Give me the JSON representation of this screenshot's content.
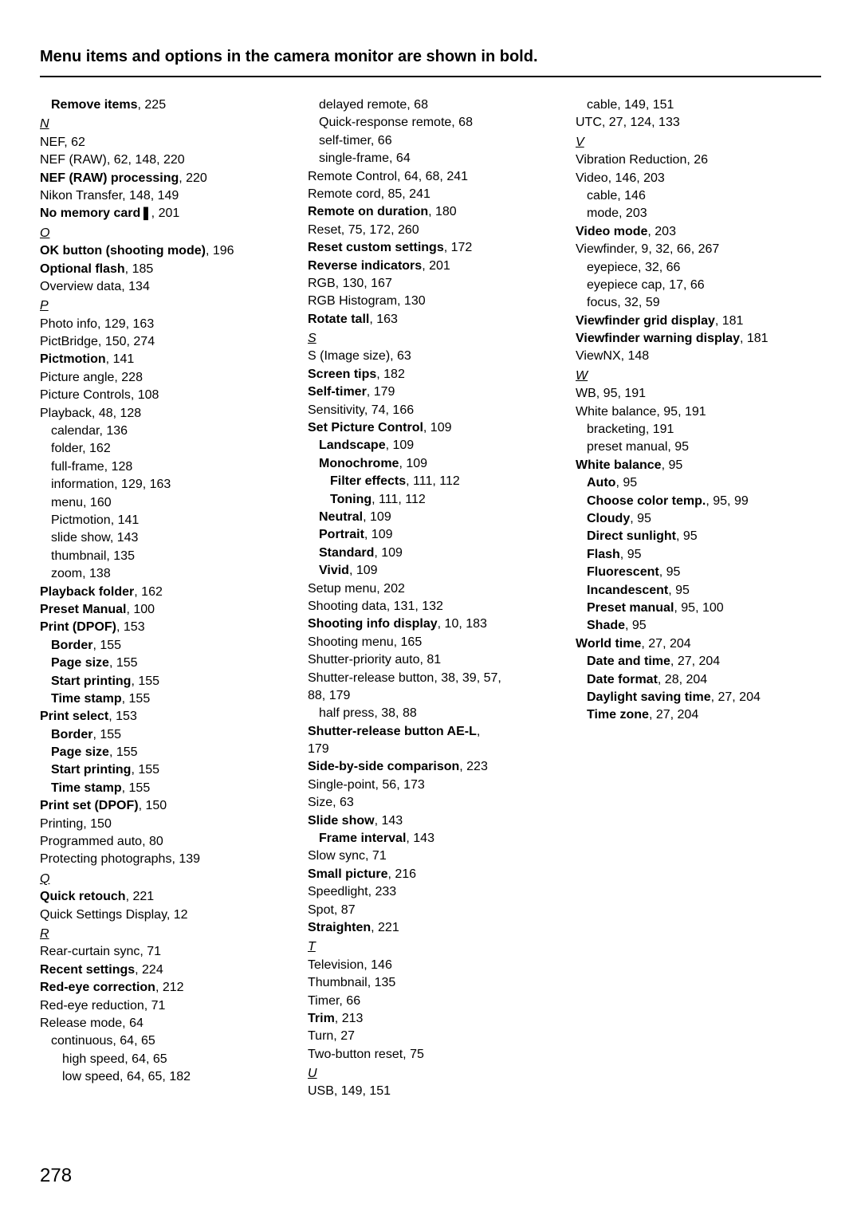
{
  "header": "Menu items and options in the camera monitor are shown in bold.",
  "pageNumber": "278",
  "columns": [
    [
      {
        "type": "entry",
        "indent": 1,
        "bold": true,
        "term": "Remove items",
        "pages": ", 225"
      },
      {
        "type": "section",
        "letter": "N"
      },
      {
        "type": "entry",
        "indent": 0,
        "term": "NEF, 62"
      },
      {
        "type": "entry",
        "indent": 0,
        "term": "NEF (RAW), 62, 148, 220"
      },
      {
        "type": "entry",
        "indent": 0,
        "bold": true,
        "term": "NEF (RAW) processing",
        "pages": ", 220"
      },
      {
        "type": "entry",
        "indent": 0,
        "term": "Nikon Transfer, 148, 149"
      },
      {
        "type": "entry",
        "indent": 0,
        "bold": true,
        "term": "No memory card❚",
        "pages": ", 201"
      },
      {
        "type": "section",
        "letter": "O"
      },
      {
        "type": "entry",
        "indent": 0,
        "bold": true,
        "term": "OK button (shooting mode)",
        "pages": ", 196"
      },
      {
        "type": "entry",
        "indent": 0,
        "bold": true,
        "term": "Optional flash",
        "pages": ", 185"
      },
      {
        "type": "entry",
        "indent": 0,
        "term": "Overview data, 134"
      },
      {
        "type": "section",
        "letter": "P"
      },
      {
        "type": "entry",
        "indent": 0,
        "term": "Photo info, 129, 163"
      },
      {
        "type": "entry",
        "indent": 0,
        "term": "PictBridge, 150, 274"
      },
      {
        "type": "entry",
        "indent": 0,
        "bold": true,
        "term": "Pictmotion",
        "pages": ", 141"
      },
      {
        "type": "entry",
        "indent": 0,
        "term": "Picture angle, 228"
      },
      {
        "type": "entry",
        "indent": 0,
        "term": "Picture Controls, 108"
      },
      {
        "type": "entry",
        "indent": 0,
        "term": "Playback, 48, 128"
      },
      {
        "type": "entry",
        "indent": 1,
        "term": "calendar, 136"
      },
      {
        "type": "entry",
        "indent": 1,
        "term": "folder, 162"
      },
      {
        "type": "entry",
        "indent": 1,
        "term": "full-frame, 128"
      },
      {
        "type": "entry",
        "indent": 1,
        "term": "information, 129, 163"
      },
      {
        "type": "entry",
        "indent": 1,
        "term": "menu, 160"
      },
      {
        "type": "entry",
        "indent": 1,
        "term": "Pictmotion, 141"
      },
      {
        "type": "entry",
        "indent": 1,
        "term": "slide show, 143"
      },
      {
        "type": "entry",
        "indent": 1,
        "term": "thumbnail, 135"
      },
      {
        "type": "entry",
        "indent": 1,
        "term": "zoom, 138"
      },
      {
        "type": "entry",
        "indent": 0,
        "bold": true,
        "term": "Playback folder",
        "pages": ", 162"
      },
      {
        "type": "entry",
        "indent": 0,
        "bold": true,
        "term": "Preset Manual",
        "pages": ", 100"
      },
      {
        "type": "entry",
        "indent": 0,
        "bold": true,
        "term": "Print (DPOF)",
        "pages": ", 153"
      },
      {
        "type": "entry",
        "indent": 1,
        "bold": true,
        "term": "Border",
        "pages": ", 155"
      },
      {
        "type": "entry",
        "indent": 1,
        "bold": true,
        "term": "Page size",
        "pages": ", 155"
      },
      {
        "type": "entry",
        "indent": 1,
        "bold": true,
        "term": "Start printing",
        "pages": ", 155"
      },
      {
        "type": "entry",
        "indent": 1,
        "bold": true,
        "term": "Time stamp",
        "pages": ", 155"
      },
      {
        "type": "entry",
        "indent": 0,
        "bold": true,
        "term": "Print select",
        "pages": ", 153"
      },
      {
        "type": "entry",
        "indent": 1,
        "bold": true,
        "term": "Border",
        "pages": ", 155"
      },
      {
        "type": "entry",
        "indent": 1,
        "bold": true,
        "term": "Page size",
        "pages": ", 155"
      },
      {
        "type": "entry",
        "indent": 1,
        "bold": true,
        "term": "Start printing",
        "pages": ", 155"
      },
      {
        "type": "entry",
        "indent": 1,
        "bold": true,
        "term": "Time stamp",
        "pages": ", 155"
      },
      {
        "type": "entry",
        "indent": 0,
        "bold": true,
        "term": "Print set (DPOF)",
        "pages": ", 150"
      },
      {
        "type": "entry",
        "indent": 0,
        "term": "Printing, 150"
      },
      {
        "type": "entry",
        "indent": 0,
        "term": "Programmed auto, 80"
      },
      {
        "type": "entry",
        "indent": 0,
        "term": "Protecting photographs, 139"
      },
      {
        "type": "section",
        "letter": "Q"
      },
      {
        "type": "entry",
        "indent": 0,
        "bold": true,
        "term": "Quick retouch",
        "pages": ", 221"
      },
      {
        "type": "entry",
        "indent": 0,
        "term": "Quick Settings Display, 12"
      },
      {
        "type": "section",
        "letter": "R"
      },
      {
        "type": "entry",
        "indent": 0,
        "term": "Rear-curtain sync, 71"
      },
      {
        "type": "entry",
        "indent": 0,
        "bold": true,
        "term": "Recent settings",
        "pages": ", 224"
      },
      {
        "type": "entry",
        "indent": 0,
        "bold": true,
        "term": "Red-eye correction",
        "pages": ", 212"
      },
      {
        "type": "entry",
        "indent": 0,
        "term": "Red-eye reduction, 71"
      },
      {
        "type": "entry",
        "indent": 0,
        "term": "Release mode, 64"
      },
      {
        "type": "entry",
        "indent": 1,
        "term": "continuous, 64, 65"
      },
      {
        "type": "entry",
        "indent": 2,
        "term": "high speed, 64, 65"
      },
      {
        "type": "entry",
        "indent": 2,
        "term": "low speed, 64, 65, 182"
      }
    ],
    [
      {
        "type": "entry",
        "indent": 1,
        "term": "delayed remote, 68"
      },
      {
        "type": "entry",
        "indent": 1,
        "term": "Quick-response remote, 68"
      },
      {
        "type": "entry",
        "indent": 1,
        "term": "self-timer, 66"
      },
      {
        "type": "entry",
        "indent": 1,
        "term": "single-frame, 64"
      },
      {
        "type": "entry",
        "indent": 0,
        "term": "Remote Control, 64, 68, 241"
      },
      {
        "type": "entry",
        "indent": 0,
        "term": "Remote cord, 85, 241"
      },
      {
        "type": "entry",
        "indent": 0,
        "bold": true,
        "term": "Remote on duration",
        "pages": ", 180"
      },
      {
        "type": "entry",
        "indent": 0,
        "term": "Reset, 75, 172, 260"
      },
      {
        "type": "entry",
        "indent": 0,
        "bold": true,
        "term": "Reset custom settings",
        "pages": ", 172"
      },
      {
        "type": "entry",
        "indent": 0,
        "bold": true,
        "term": "Reverse indicators",
        "pages": ", 201"
      },
      {
        "type": "entry",
        "indent": 0,
        "term": "RGB, 130, 167"
      },
      {
        "type": "entry",
        "indent": 0,
        "term": "RGB Histogram, 130"
      },
      {
        "type": "entry",
        "indent": 0,
        "bold": true,
        "term": "Rotate tall",
        "pages": ", 163"
      },
      {
        "type": "section",
        "letter": "S"
      },
      {
        "type": "entry",
        "indent": 0,
        "term": "S (Image size), 63"
      },
      {
        "type": "entry",
        "indent": 0,
        "bold": true,
        "term": "Screen tips",
        "pages": ", 182"
      },
      {
        "type": "entry",
        "indent": 0,
        "bold": true,
        "term": "Self-timer",
        "pages": ", 179"
      },
      {
        "type": "entry",
        "indent": 0,
        "term": "Sensitivity, 74, 166"
      },
      {
        "type": "entry",
        "indent": 0,
        "bold": true,
        "term": "Set Picture Control",
        "pages": ", 109"
      },
      {
        "type": "entry",
        "indent": 1,
        "bold": true,
        "term": "Landscape",
        "pages": ", 109"
      },
      {
        "type": "entry",
        "indent": 1,
        "bold": true,
        "term": "Monochrome",
        "pages": ", 109"
      },
      {
        "type": "entry",
        "indent": 2,
        "bold": true,
        "term": "Filter effects",
        "pages": ", 111, 112"
      },
      {
        "type": "entry",
        "indent": 2,
        "bold": true,
        "term": "Toning",
        "pages": ", 111, 112"
      },
      {
        "type": "entry",
        "indent": 1,
        "bold": true,
        "term": "Neutral",
        "pages": ", 109"
      },
      {
        "type": "entry",
        "indent": 1,
        "bold": true,
        "term": "Portrait",
        "pages": ", 109"
      },
      {
        "type": "entry",
        "indent": 1,
        "bold": true,
        "term": "Standard",
        "pages": ", 109"
      },
      {
        "type": "entry",
        "indent": 1,
        "bold": true,
        "term": "Vivid",
        "pages": ", 109"
      },
      {
        "type": "entry",
        "indent": 0,
        "term": "Setup menu, 202"
      },
      {
        "type": "entry",
        "indent": 0,
        "term": "Shooting data, 131, 132"
      },
      {
        "type": "entry",
        "indent": 0,
        "bold": true,
        "term": "Shooting info display",
        "pages": ", 10, 183"
      },
      {
        "type": "entry",
        "indent": 0,
        "term": "Shooting menu, 165"
      },
      {
        "type": "entry",
        "indent": 0,
        "term": "Shutter-priority auto, 81"
      },
      {
        "type": "entry",
        "indent": 0,
        "term": "Shutter-release button, 38, 39, 57,",
        "wrap": true
      },
      {
        "type": "entry",
        "indent": 0,
        "term": " 88, 179",
        "cont": true
      },
      {
        "type": "entry",
        "indent": 1,
        "term": "half press, 38, 88"
      },
      {
        "type": "entry",
        "indent": 0,
        "bold": true,
        "term": "Shutter-release button AE-L",
        "pages": ", ",
        "wrap": true
      },
      {
        "type": "entry",
        "indent": 0,
        "term": " 179",
        "cont": true
      },
      {
        "type": "entry",
        "indent": 0,
        "bold": true,
        "term": "Side-by-side comparison",
        "pages": ", 223"
      },
      {
        "type": "entry",
        "indent": 0,
        "term": "Single-point, 56, 173"
      },
      {
        "type": "entry",
        "indent": 0,
        "term": "Size, 63"
      },
      {
        "type": "entry",
        "indent": 0,
        "bold": true,
        "term": "Slide show",
        "pages": ", 143"
      },
      {
        "type": "entry",
        "indent": 1,
        "bold": true,
        "term": "Frame interval",
        "pages": ", 143"
      },
      {
        "type": "entry",
        "indent": 0,
        "term": "Slow sync, 71"
      },
      {
        "type": "entry",
        "indent": 0,
        "bold": true,
        "term": "Small picture",
        "pages": ", 216"
      },
      {
        "type": "entry",
        "indent": 0,
        "term": "Speedlight, 233"
      },
      {
        "type": "entry",
        "indent": 0,
        "term": "Spot, 87"
      },
      {
        "type": "entry",
        "indent": 0,
        "bold": true,
        "term": "Straighten",
        "pages": ", 221"
      },
      {
        "type": "section",
        "letter": "T"
      },
      {
        "type": "entry",
        "indent": 0,
        "term": "Television, 146"
      },
      {
        "type": "entry",
        "indent": 0,
        "term": "Thumbnail, 135"
      },
      {
        "type": "entry",
        "indent": 0,
        "term": "Timer, 66"
      },
      {
        "type": "entry",
        "indent": 0,
        "bold": true,
        "term": "Trim",
        "pages": ", 213"
      },
      {
        "type": "entry",
        "indent": 0,
        "term": "Turn, 27"
      },
      {
        "type": "entry",
        "indent": 0,
        "term": "Two-button reset, 75"
      },
      {
        "type": "section",
        "letter": "U"
      },
      {
        "type": "entry",
        "indent": 0,
        "term": "USB, 149, 151"
      }
    ],
    [
      {
        "type": "entry",
        "indent": 1,
        "term": "cable, 149, 151"
      },
      {
        "type": "entry",
        "indent": 0,
        "term": "UTC, 27, 124, 133"
      },
      {
        "type": "section",
        "letter": "V"
      },
      {
        "type": "entry",
        "indent": 0,
        "term": "Vibration Reduction, 26"
      },
      {
        "type": "entry",
        "indent": 0,
        "term": "Video, 146, 203"
      },
      {
        "type": "entry",
        "indent": 1,
        "term": "cable, 146"
      },
      {
        "type": "entry",
        "indent": 1,
        "term": "mode, 203"
      },
      {
        "type": "entry",
        "indent": 0,
        "bold": true,
        "term": "Video mode",
        "pages": ", 203"
      },
      {
        "type": "entry",
        "indent": 0,
        "term": "Viewfinder, 9, 32, 66, 267"
      },
      {
        "type": "entry",
        "indent": 1,
        "term": "eyepiece, 32, 66"
      },
      {
        "type": "entry",
        "indent": 1,
        "term": "eyepiece cap, 17, 66"
      },
      {
        "type": "entry",
        "indent": 1,
        "term": "focus, 32, 59"
      },
      {
        "type": "entry",
        "indent": 0,
        "bold": true,
        "term": "Viewfinder grid display",
        "pages": ", 181"
      },
      {
        "type": "entry",
        "indent": 0,
        "bold": true,
        "term": "Viewfinder warning display",
        "pages": ", 181"
      },
      {
        "type": "entry",
        "indent": 0,
        "term": "ViewNX, 148"
      },
      {
        "type": "section",
        "letter": "W"
      },
      {
        "type": "entry",
        "indent": 0,
        "term": "WB, 95, 191"
      },
      {
        "type": "entry",
        "indent": 0,
        "term": "White balance, 95, 191"
      },
      {
        "type": "entry",
        "indent": 1,
        "term": "bracketing, 191"
      },
      {
        "type": "entry",
        "indent": 1,
        "term": "preset manual, 95"
      },
      {
        "type": "entry",
        "indent": 0,
        "bold": true,
        "term": "White balance",
        "pages": ", 95"
      },
      {
        "type": "entry",
        "indent": 1,
        "bold": true,
        "term": "Auto",
        "pages": ", 95"
      },
      {
        "type": "entry",
        "indent": 1,
        "bold": true,
        "term": "Choose color temp.",
        "pages": ", 95, 99"
      },
      {
        "type": "entry",
        "indent": 1,
        "bold": true,
        "term": "Cloudy",
        "pages": ", 95"
      },
      {
        "type": "entry",
        "indent": 1,
        "bold": true,
        "term": "Direct sunlight",
        "pages": ", 95"
      },
      {
        "type": "entry",
        "indent": 1,
        "bold": true,
        "term": "Flash",
        "pages": ", 95"
      },
      {
        "type": "entry",
        "indent": 1,
        "bold": true,
        "term": "Fluorescent",
        "pages": ", 95"
      },
      {
        "type": "entry",
        "indent": 1,
        "bold": true,
        "term": "Incandescent",
        "pages": ", 95"
      },
      {
        "type": "entry",
        "indent": 1,
        "bold": true,
        "term": "Preset manual",
        "pages": ", 95, 100"
      },
      {
        "type": "entry",
        "indent": 1,
        "bold": true,
        "term": "Shade",
        "pages": ", 95"
      },
      {
        "type": "entry",
        "indent": 0,
        "bold": true,
        "term": "World time",
        "pages": ", 27, 204"
      },
      {
        "type": "entry",
        "indent": 1,
        "bold": true,
        "term": "Date and time",
        "pages": ", 27, 204"
      },
      {
        "type": "entry",
        "indent": 1,
        "bold": true,
        "term": "Date format",
        "pages": ", 28, 204"
      },
      {
        "type": "entry",
        "indent": 1,
        "bold": true,
        "term": "Daylight saving time",
        "pages": ", 27, 204"
      },
      {
        "type": "entry",
        "indent": 1,
        "bold": true,
        "term": "Time zone",
        "pages": ", 27, 204"
      }
    ]
  ]
}
